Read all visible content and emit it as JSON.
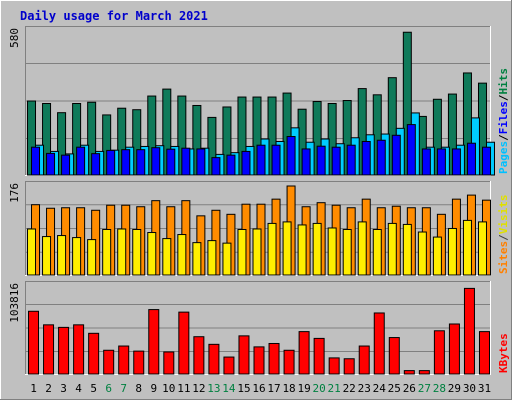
{
  "chart_data": {
    "type": "bar",
    "title": "Daily usage for March 2021",
    "days": [
      "1",
      "2",
      "3",
      "4",
      "5",
      "6",
      "7",
      "8",
      "9",
      "10",
      "11",
      "12",
      "13",
      "14",
      "15",
      "16",
      "17",
      "18",
      "19",
      "20",
      "21",
      "22",
      "23",
      "24",
      "25",
      "26",
      "27",
      "28",
      "29",
      "30",
      "31"
    ],
    "weekend_days": [
      "6",
      "7",
      "13",
      "14",
      "20",
      "21",
      "27",
      "28"
    ],
    "panels": [
      {
        "id": "hits",
        "max_label": "580",
        "max": 580,
        "legend": [
          {
            "text": "Pages",
            "color": "#00c0ff"
          },
          {
            "text": "Files",
            "color": "#0000ff"
          },
          {
            "text": "Hits",
            "color": "#008040"
          }
        ],
        "series": [
          {
            "name": "Hits",
            "color": "#0f7a5a",
            "values": [
              298,
              288,
              251,
              288,
              293,
              242,
              269,
              263,
              318,
              346,
              318,
              280,
              232,
              274,
              314,
              314,
              314,
              330,
              265,
              296,
              288,
              300,
              348,
              323,
              392,
              575,
              236,
              305,
              326,
              411,
              370
            ]
          },
          {
            "name": "Files",
            "color": "#0000ff",
            "values": [
              112,
              87,
              80,
              112,
              86,
              99,
              102,
              102,
              110,
              104,
              108,
              105,
              70,
              80,
              95,
              120,
              120,
              155,
              105,
              116,
              112,
              120,
              135,
              140,
              160,
              203,
              105,
              105,
              105,
              128,
              112
            ]
          },
          {
            "name": "Pages",
            "color": "#00ccff",
            "values": [
              120,
              95,
              85,
              120,
              95,
              100,
              112,
              115,
              118,
              115,
              105,
              108,
              83,
              90,
              115,
              145,
              135,
              190,
              132,
              145,
              126,
              150,
              162,
              165,
              188,
              250,
              112,
              112,
              120,
              230,
              132
            ]
          }
        ]
      },
      {
        "id": "sites",
        "max_label": "176",
        "max": 176,
        "legend": [
          {
            "text": "Sites",
            "color": "#ff8000"
          },
          {
            "text": "/",
            "color": "#404040"
          },
          {
            "text": "Visits",
            "color": "#e0e000"
          }
        ],
        "series": [
          {
            "name": "Visits",
            "color": "#ffee00",
            "values": [
              91,
              76,
              78,
              74,
              70,
              90,
              91,
              90,
              84,
              72,
              80,
              64,
              68,
              63,
              90,
              91,
              102,
              105,
              99,
              102,
              93,
              90,
              105,
              90,
              102,
              100,
              85,
              75,
              92,
              108,
              105
            ]
          },
          {
            "name": "Sites",
            "color": "#ff8c00",
            "values": [
              139,
              132,
              133,
              133,
              128,
              138,
              138,
              135,
              147,
              135,
              147,
              117,
              128,
              120,
              140,
              140,
              150,
              176,
              135,
              143,
              138,
              133,
              150,
              133,
              136,
              133,
              133,
              120,
              150,
              158,
              148
            ]
          }
        ]
      },
      {
        "id": "kbytes",
        "max_label": "103816",
        "max": 103816,
        "legend": [
          {
            "text": "KBytes",
            "color": "#ff0000"
          }
        ],
        "series": [
          {
            "name": "KBytes",
            "color": "#ff0000",
            "values": [
              74000,
              58000,
              55000,
              58000,
              48000,
              28000,
              33000,
              27000,
              76000,
              26000,
              73000,
              44000,
              35000,
              20000,
              45000,
              32000,
              36000,
              28000,
              50000,
              42000,
              19000,
              18000,
              33000,
              72000,
              43000,
              4000,
              4000,
              51000,
              59000,
              101000,
              50000
            ]
          }
        ]
      }
    ]
  }
}
